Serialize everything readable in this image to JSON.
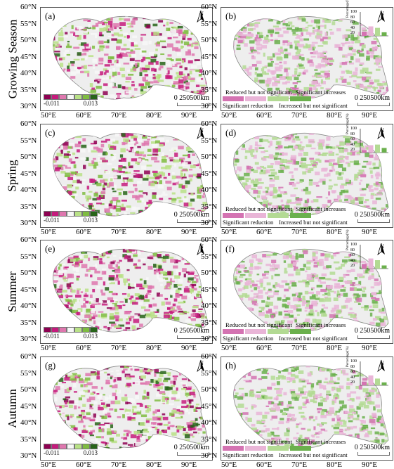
{
  "rows": [
    {
      "season": "Growing Season",
      "left_tag": "(a)",
      "right_tag": "(b)",
      "pct": [
        20,
        45,
        38,
        17
      ]
    },
    {
      "season": "Spring",
      "left_tag": "(c)",
      "right_tag": "(d)",
      "pct": [
        12,
        35,
        38,
        22
      ]
    },
    {
      "season": "Summer",
      "left_tag": "(e)",
      "right_tag": "(f)",
      "pct": [
        22,
        48,
        40,
        15
      ]
    },
    {
      "season": "Autumn",
      "left_tag": "(g)",
      "right_tag": "(h)",
      "pct": [
        18,
        47,
        32,
        14
      ]
    }
  ],
  "lat_ticks": [
    "60°N",
    "55°N",
    "50°N",
    "45°N",
    "40°N",
    "35°N",
    "30°N"
  ],
  "lon_ticks_left": [
    "50°E",
    "60°E",
    "70°E",
    "80°E",
    "90°E"
  ],
  "lon_ticks_right": [
    "50°E",
    "60°E",
    "70°E",
    "80°E",
    "90°E"
  ],
  "north_label": "N",
  "scale_label": "0 250500km",
  "legend_trend": {
    "min": "-0.011",
    "max": "0.013",
    "colors": [
      "#8e0152",
      "#c51b7d",
      "#de77ae",
      "#f7f7f7",
      "#b8e186",
      "#7fbc41",
      "#276419"
    ]
  },
  "legend_sig": {
    "line1": "Reduced but not significant",
    "line2": "Significant increases",
    "line3": "Significant reduction",
    "line4": "Increased but not significant",
    "colors": [
      "#d473b2",
      "#e9b5d7",
      "#b3da93",
      "#6bb04d"
    ]
  },
  "inset": {
    "ylabel": "Percentage(%)",
    "yticks": [
      "100",
      "80",
      "60",
      "40",
      "20"
    ],
    "colors": [
      "#d473b2",
      "#e9b5d7",
      "#b3da93",
      "#6bb04d"
    ]
  }
}
